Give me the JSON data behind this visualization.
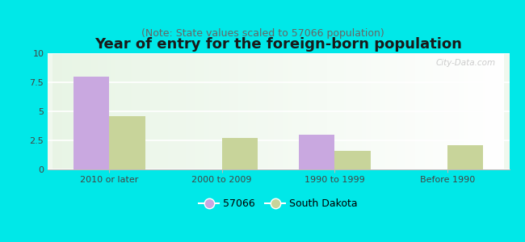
{
  "title": "Year of entry for the foreign-born population",
  "subtitle": "(Note: State values scaled to 57066 population)",
  "categories": [
    "2010 or later",
    "2000 to 2009",
    "1990 to 1999",
    "Before 1990"
  ],
  "series1_label": "57066",
  "series1_values": [
    8.0,
    0,
    3.0,
    0
  ],
  "series1_color": "#c9a8e0",
  "series2_label": "South Dakota",
  "series2_values": [
    4.6,
    2.7,
    1.6,
    2.1
  ],
  "series2_color": "#c8d49a",
  "ylim": [
    0,
    10
  ],
  "yticks": [
    0,
    2.5,
    5,
    7.5,
    10
  ],
  "ytick_labels": [
    "0",
    "2.5",
    "5",
    "7.5",
    "10"
  ],
  "background_color": "#00e8e8",
  "bar_width": 0.32,
  "title_fontsize": 13,
  "subtitle_fontsize": 9,
  "tick_fontsize": 8,
  "legend_fontsize": 9,
  "watermark": "City-Data.com",
  "gradient_top": "#e8f5e2",
  "gradient_bottom": "#f8fffa",
  "gradient_right": "#ffffff"
}
